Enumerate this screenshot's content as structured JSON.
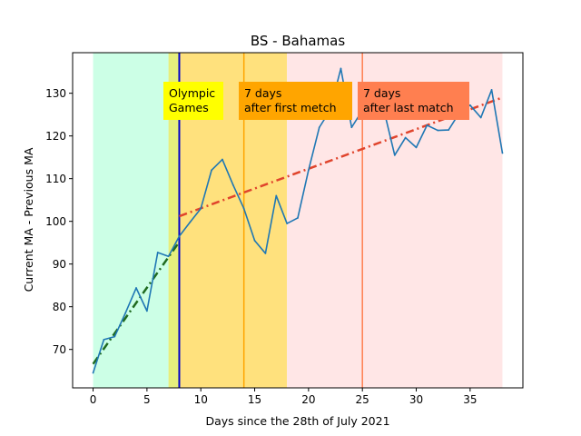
{
  "chart_data": {
    "type": "line",
    "title": "BS - Bahamas",
    "xlabel": "Days since the 28th of July 2021",
    "ylabel": "Current MA - Previous MA",
    "xlim": [
      -1.9,
      39.9
    ],
    "ylim": [
      61,
      139.5
    ],
    "xticks": [
      0,
      5,
      10,
      15,
      20,
      25,
      30,
      35
    ],
    "yticks": [
      70,
      80,
      90,
      100,
      110,
      120,
      130
    ],
    "grid": false,
    "legend": "none",
    "series": [
      {
        "color": "#1f77b4",
        "x": [
          0,
          1,
          2,
          3,
          4,
          5,
          6,
          7,
          8,
          9,
          10,
          11,
          12,
          13,
          14,
          15,
          16,
          17,
          18,
          19,
          20,
          21,
          22,
          23,
          24,
          25,
          26,
          27,
          28,
          29,
          30,
          31,
          32,
          33,
          34,
          35,
          36,
          37,
          38
        ],
        "y": [
          64.5,
          72.3,
          73.0,
          78.5,
          84.4,
          79.0,
          92.7,
          91.8,
          96.5,
          99.8,
          103.0,
          112.0,
          114.5,
          108.5,
          103.0,
          95.5,
          92.5,
          106.0,
          99.5,
          100.8,
          112.0,
          122.0,
          126.0,
          135.8,
          122.0,
          126.0,
          130.0,
          126.0,
          115.5,
          119.6,
          117.3,
          122.5,
          121.3,
          121.4,
          125.4,
          127.2,
          124.3,
          130.8,
          116.0
        ]
      }
    ],
    "regions": [
      {
        "from": 0,
        "to": 7,
        "color": "#ccffe6"
      },
      {
        "from": 7,
        "to": 8,
        "color": "#e6ee7d"
      },
      {
        "from": 8,
        "to": 18,
        "color": "#ffe17d"
      },
      {
        "from": 18,
        "to": 38,
        "color": "#ffe6e6"
      }
    ],
    "vlines": [
      {
        "x": 8,
        "color": "#0000cc"
      },
      {
        "x": 14,
        "color": "#ffa500"
      },
      {
        "x": 25,
        "color": "#ff7f50"
      }
    ],
    "trendlines": [
      {
        "x": [
          0,
          8
        ],
        "y": [
          66.6,
          95.2
        ],
        "color": "#1f6a1f"
      },
      {
        "x": [
          8,
          38
        ],
        "y": [
          101.2,
          129.0
        ],
        "color": "#e0442c"
      }
    ],
    "annotations": [
      {
        "lines": [
          "Olympic",
          "Games"
        ],
        "bg": "#ffff00"
      },
      {
        "lines": [
          "7 days",
          "after first metch"
        ],
        "bg": "#ffa500"
      },
      {
        "lines": [
          "7 days",
          "after last match"
        ],
        "bg": "#ff7f50"
      }
    ]
  }
}
